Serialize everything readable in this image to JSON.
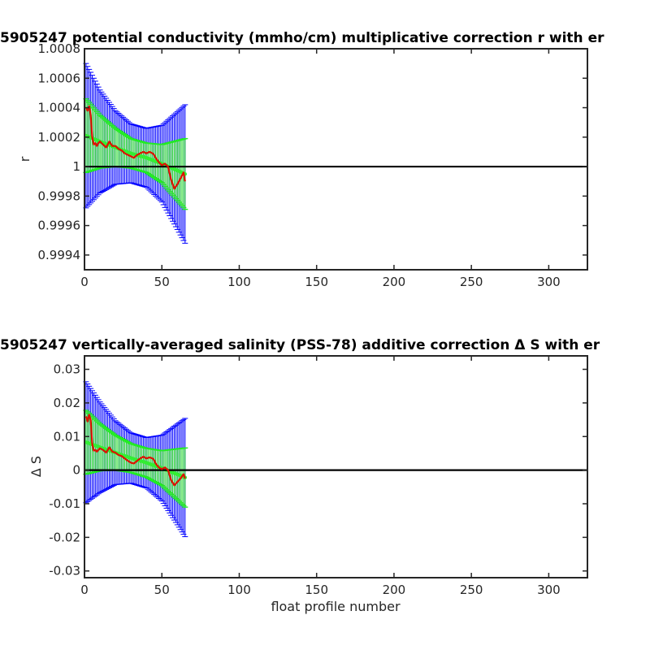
{
  "chart_data": [
    {
      "type": "line",
      "title": "5905247 potential conductivity (mmho/cm) multiplicative correction r with er",
      "xlabel": "",
      "ylabel": "r",
      "xlim": [
        0,
        325
      ],
      "ylim": [
        0.9993,
        1.0008
      ],
      "xticks": [
        0,
        50,
        100,
        150,
        200,
        250,
        300
      ],
      "xtick_labels": [
        "0",
        "50",
        "100",
        "150",
        "200",
        "250",
        "300"
      ],
      "yticks": [
        0.9994,
        0.9996,
        0.9998,
        1.0,
        1.0002,
        1.0004,
        1.0006,
        1.0008
      ],
      "ytick_labels": [
        "0.9994",
        "0.9996",
        "0.9998",
        "1",
        "1.0002",
        "1.0004",
        "1.0006",
        "1.0008"
      ],
      "reference_line": 1.0,
      "profiles": [
        1,
        65
      ],
      "fit_center": [
        [
          1,
          1.00021
        ],
        [
          10,
          1.00017
        ],
        [
          20,
          1.00013
        ],
        [
          30,
          1.00009
        ],
        [
          40,
          1.00006
        ],
        [
          50,
          1.00002
        ],
        [
          65,
          0.99995
        ]
      ],
      "fit_half_width": [
        [
          1,
          0.00025
        ],
        [
          10,
          0.00018
        ],
        [
          20,
          0.00013
        ],
        [
          30,
          0.0001
        ],
        [
          40,
          0.0001
        ],
        [
          50,
          0.00013
        ],
        [
          65,
          0.00024
        ]
      ],
      "total_half_width": [
        [
          1,
          0.00049
        ],
        [
          10,
          0.00035
        ],
        [
          20,
          0.00025
        ],
        [
          30,
          0.0002
        ],
        [
          40,
          0.0002
        ],
        [
          50,
          0.00026
        ],
        [
          65,
          0.00047
        ]
      ],
      "series": [
        {
          "x": [
            1,
            2,
            3,
            4,
            5,
            6,
            7,
            8,
            9,
            10,
            12,
            14,
            16,
            18,
            20,
            22,
            24,
            26,
            28,
            30,
            32,
            34,
            36,
            38,
            40,
            42,
            44,
            45,
            46,
            48,
            50,
            52,
            54,
            56,
            58,
            60,
            62,
            64,
            65
          ],
          "values": [
            1.0004,
            1.00038,
            1.00041,
            1.00035,
            1.0002,
            1.00015,
            1.00016,
            1.00014,
            1.00016,
            1.00017,
            1.00015,
            1.00013,
            1.00017,
            1.00014,
            1.00014,
            1.00012,
            1.00011,
            1.00009,
            1.00008,
            1.00007,
            1.00006,
            1.00008,
            1.00009,
            1.0001,
            1.00009,
            1.0001,
            1.00009,
            1.00008,
            1.00006,
            1.00003,
            1.00001,
            1.00002,
            1.0,
            0.99991,
            0.99985,
            0.99988,
            0.99992,
            0.99996,
            0.9999
          ]
        }
      ]
    },
    {
      "type": "line",
      "title": "5905247 vertically-averaged salinity (PSS-78) additive correction Δ S with er",
      "xlabel": "float profile number",
      "ylabel": "Δ S",
      "xlim": [
        0,
        325
      ],
      "ylim": [
        -0.032,
        0.034
      ],
      "xticks": [
        0,
        50,
        100,
        150,
        200,
        250,
        300
      ],
      "xtick_labels": [
        "0",
        "50",
        "100",
        "150",
        "200",
        "250",
        "300"
      ],
      "yticks": [
        -0.03,
        -0.02,
        -0.01,
        0,
        0.01,
        0.02,
        0.03
      ],
      "ytick_labels": [
        "-0.03",
        "-0.02",
        "-0.01",
        "0",
        "0.01",
        "0.02",
        "0.03"
      ],
      "reference_line": 0,
      "profiles": [
        1,
        65
      ],
      "fit_center": [
        [
          1,
          0.0083
        ],
        [
          10,
          0.0068
        ],
        [
          20,
          0.0052
        ],
        [
          30,
          0.0036
        ],
        [
          40,
          0.0022
        ],
        [
          50,
          0.0006
        ],
        [
          65,
          -0.0022
        ]
      ],
      "fit_half_width": [
        [
          1,
          0.0095
        ],
        [
          10,
          0.007
        ],
        [
          20,
          0.0052
        ],
        [
          30,
          0.0043
        ],
        [
          40,
          0.0043
        ],
        [
          50,
          0.0052
        ],
        [
          65,
          0.0088
        ]
      ],
      "total_half_width": [
        [
          1,
          0.018
        ],
        [
          10,
          0.0135
        ],
        [
          20,
          0.0095
        ],
        [
          30,
          0.0075
        ],
        [
          40,
          0.0075
        ],
        [
          50,
          0.0098
        ],
        [
          65,
          0.0176
        ]
      ],
      "series": [
        {
          "x": [
            1,
            2,
            3,
            4,
            5,
            6,
            7,
            8,
            9,
            10,
            12,
            14,
            16,
            18,
            20,
            22,
            24,
            26,
            28,
            30,
            32,
            34,
            36,
            38,
            40,
            42,
            44,
            45,
            46,
            48,
            50,
            52,
            54,
            56,
            58,
            60,
            62,
            64,
            65
          ],
          "values": [
            0.016,
            0.0145,
            0.0165,
            0.015,
            0.0078,
            0.0058,
            0.006,
            0.0055,
            0.006,
            0.0065,
            0.006,
            0.0052,
            0.0068,
            0.0055,
            0.0052,
            0.0045,
            0.0042,
            0.0035,
            0.0028,
            0.0022,
            0.002,
            0.0028,
            0.0035,
            0.004,
            0.0035,
            0.0038,
            0.0035,
            0.003,
            0.002,
            0.0008,
            0.0003,
            0.0008,
            0.0,
            -0.003,
            -0.0045,
            -0.0035,
            -0.0025,
            -0.0012,
            -0.0025
          ]
        }
      ]
    }
  ]
}
